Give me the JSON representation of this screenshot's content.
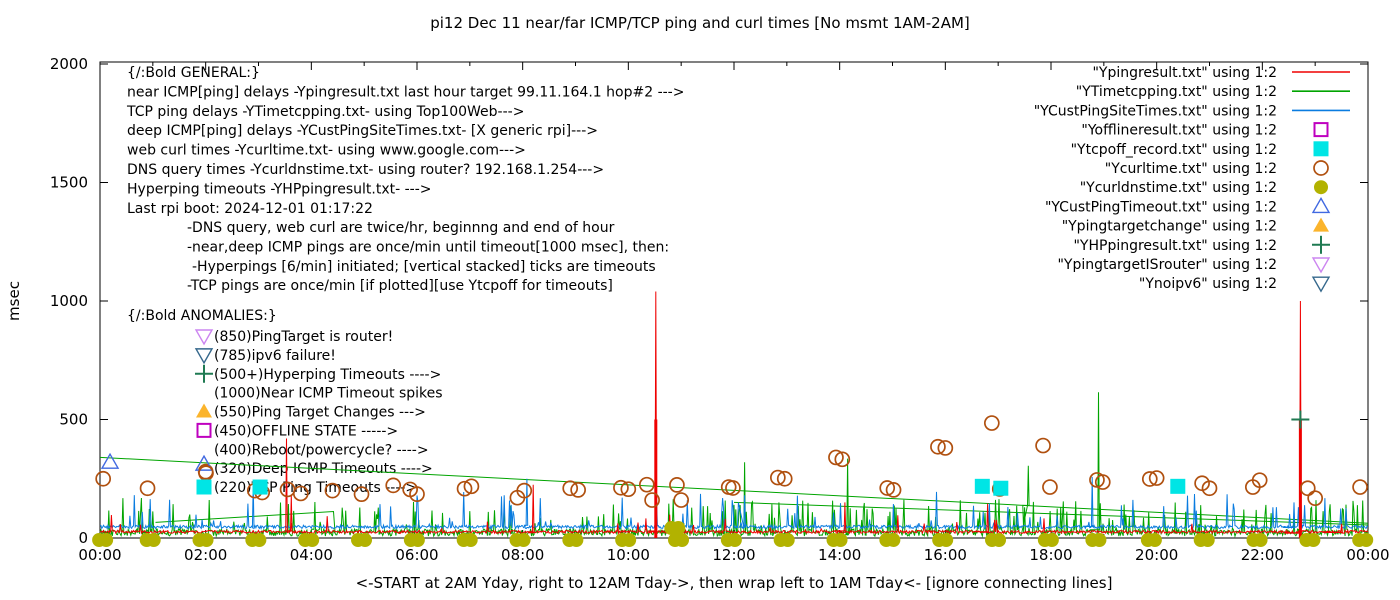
{
  "title": "pi12 Dec 11  near/far ICMP/TCP ping and curl times [No msmt 1AM-2AM]",
  "y_axis": {
    "label": "msec",
    "ticks": [
      "0",
      "500",
      "1000",
      "1500",
      "2000"
    ],
    "max": 2000
  },
  "x_axis": {
    "tick_labels": [
      "00:00",
      "02:00",
      "04:00",
      "06:00",
      "08:00",
      "10:00",
      "12:00",
      "14:00",
      "16:00",
      "18:00",
      "20:00",
      "22:00",
      "00:00"
    ],
    "caption": "<-START at 2AM Yday, right to 12AM Tday->, then wrap left to 1AM Tday<- [ignore connecting lines]"
  },
  "notes": {
    "general": [
      "{/:Bold GENERAL:}",
      "near ICMP[ping] delays -Ypingresult.txt last hour target 99.11.164.1 hop#2 --->",
      "TCP ping delays -YTimetcpping.txt- using Top100Web--->",
      "deep ICMP[ping] delays -YCustPingSiteTimes.txt- [X generic rpi]--->",
      "web curl times -Ycurltime.txt- using www.google.com--->",
      "DNS query times -Ycurldnstime.txt- using router? 192.168.1.254--->",
      "Hyperping timeouts -YHPpingresult.txt- --->",
      "Last rpi boot: 2024-12-01 01:17:22"
    ],
    "indented": [
      "-DNS query, web curl are twice/hr, beginnng and end of hour",
      "-near,deep ICMP pings are once/min until timeout[1000 msec], then:",
      "-Hyperpings [6/min] initiated; [vertical stacked] ticks are timeouts",
      "-TCP pings are once/min [if plotted][use Ytcpoff for timeouts]"
    ],
    "anomalies_header": "{/:Bold ANOMALIES:}",
    "anomalies": [
      {
        "marker": "tri-down-open",
        "color": "#cc85f0",
        "label": "(850)PingTarget is router!"
      },
      {
        "marker": "tri-down-open",
        "color": "#35688c",
        "label": "(785)ipv6 failure!"
      },
      {
        "marker": "plus",
        "color": "#1f7a52",
        "label": "(500+)Hyperping Timeouts ---->"
      },
      {
        "marker": "none",
        "color": "",
        "label": "(1000)Near ICMP Timeout spikes"
      },
      {
        "marker": "tri-up-filled",
        "color": "#fbb42c",
        "label": "(550)Ping Target Changes --->"
      },
      {
        "marker": "square-open",
        "color": "#bf00bf",
        "label": "(450)OFFLINE STATE ----->"
      },
      {
        "marker": "none",
        "color": "",
        "label": "(400)Reboot/powercycle? ---->"
      },
      {
        "marker": "tri-circle",
        "color": "#4169e1",
        "label": "(320)Deep ICMP Timeouts ---->"
      },
      {
        "marker": "square-filled",
        "color": "#00e5e5",
        "label": "(220)TCP Ping Timeouts ---->"
      }
    ]
  },
  "legend": [
    {
      "label": "\"Ypingresult.txt\" using 1:2",
      "sample": "line",
      "color": "#ef0000"
    },
    {
      "label": "\"YTimetcpping.txt\" using 1:2",
      "sample": "line",
      "color": "#00a400"
    },
    {
      "label": "\"YCustPingSiteTimes.txt\" using 1:2",
      "sample": "line",
      "color": "#0a7ce0"
    },
    {
      "label": "\"Yofflineresult.txt\" using 1:2",
      "sample": "square-open",
      "color": "#bf00bf"
    },
    {
      "label": "\"Ytcpoff_record.txt\" using 1:2",
      "sample": "square-filled",
      "color": "#00e5e5"
    },
    {
      "label": "\"Ycurltime.txt\" using 1:2",
      "sample": "circle-open",
      "color": "#b0500f"
    },
    {
      "label": "\"Ycurldnstime.txt\" using 1:2",
      "sample": "circle-filled",
      "color": "#b2b200"
    },
    {
      "label": "\"YCustPingTimeout.txt\" using 1:2",
      "sample": "tri-up-open",
      "color": "#4169e1"
    },
    {
      "label": "\"Ypingtargetchange\" using 1:2",
      "sample": "tri-up-filled",
      "color": "#fbb42c"
    },
    {
      "label": "\"YHPpingresult.txt\" using 1:2",
      "sample": "plus",
      "color": "#1f7a52"
    },
    {
      "label": "\"YpingtargetISrouter\" using 1:2",
      "sample": "tri-down-open",
      "color": "#cc85f0"
    },
    {
      "label": "\"Ynoipv6\" using 1:2",
      "sample": "tri-down-open",
      "color": "#35688c"
    }
  ],
  "chart_data": {
    "type": "line",
    "title": "pi12 Dec 11  near/far ICMP/TCP ping and curl times [No msmt 1AM-2AM]",
    "xlabel": "<-START at 2AM Yday, right to 12AM Tday->, then wrap left to 1AM Tday<- [ignore connecting lines]",
    "ylabel": "msec",
    "x_unit": "hours of day",
    "xlim": [
      0,
      24
    ],
    "ylim": [
      0,
      2000
    ],
    "grid": false,
    "legend_position": "top-right",
    "series": [
      {
        "name": "Ypingresult.txt",
        "type": "noisy-line",
        "color": "#ef0000",
        "baseline": 20,
        "noise": 12,
        "spike_prob": 0.02,
        "spike_max": 70,
        "spikes": [
          [
            3.53,
            420
          ],
          [
            3.62,
            180
          ],
          [
            8.2,
            225
          ],
          [
            10.52,
            1040
          ],
          [
            14.1,
            150
          ],
          [
            16.8,
            145
          ],
          [
            22.72,
            1000
          ],
          [
            23.5,
            60
          ]
        ],
        "thick_spikes": [
          [
            10.52,
            500
          ],
          [
            22.72,
            500
          ]
        ]
      },
      {
        "name": "YTimetcpping.txt",
        "type": "noisy-line",
        "color": "#00a400",
        "baseline": 8,
        "noise": 30,
        "spike_prob": 0.16,
        "spike_max": 140,
        "spikes": [
          [
            12.2,
            320
          ],
          [
            14.15,
            335
          ],
          [
            17.57,
            305
          ],
          [
            18.9,
            615
          ]
        ],
        "trend_lines": [
          [
            [
              0,
              340
            ],
            [
              24,
              62
            ]
          ],
          [
            [
              12,
              150
            ],
            [
              24,
              55
            ]
          ],
          [
            [
              1.05,
              66
            ],
            [
              4.42,
              112
            ],
            [
              4.45,
              20
            ]
          ]
        ]
      },
      {
        "name": "YCustPingSiteTimes.txt",
        "type": "noisy-line",
        "color": "#0a7ce0",
        "baseline": 40,
        "noise": 14,
        "spike_prob": 0.06,
        "spike_max": 150,
        "spikes": [
          [
            2.9,
            230
          ],
          [
            8.08,
            250
          ],
          [
            12.2,
            180
          ],
          [
            18.78,
            258
          ],
          [
            22.6,
            150
          ]
        ]
      },
      {
        "name": "Ycurltime.txt",
        "type": "points",
        "marker": "circle-open",
        "color": "#b0500f",
        "points": [
          [
            0.06,
            250
          ],
          [
            0.9,
            210
          ],
          [
            2.0,
            280
          ],
          [
            2.93,
            200
          ],
          [
            3.07,
            192
          ],
          [
            3.55,
            205
          ],
          [
            3.8,
            188
          ],
          [
            4.4,
            200
          ],
          [
            4.95,
            185
          ],
          [
            5.55,
            222
          ],
          [
            5.87,
            205
          ],
          [
            6.0,
            185
          ],
          [
            6.9,
            208
          ],
          [
            7.03,
            218
          ],
          [
            7.9,
            170
          ],
          [
            8.03,
            200
          ],
          [
            8.9,
            210
          ],
          [
            9.05,
            203
          ],
          [
            9.86,
            212
          ],
          [
            10.0,
            206
          ],
          [
            10.35,
            225
          ],
          [
            10.45,
            160
          ],
          [
            10.92,
            224
          ],
          [
            11.0,
            160
          ],
          [
            11.9,
            215
          ],
          [
            11.98,
            211
          ],
          [
            12.83,
            255
          ],
          [
            12.96,
            250
          ],
          [
            13.93,
            340
          ],
          [
            14.05,
            332
          ],
          [
            14.9,
            211
          ],
          [
            15.02,
            203
          ],
          [
            15.86,
            385
          ],
          [
            16.0,
            380
          ],
          [
            16.88,
            485
          ],
          [
            17.03,
            207
          ],
          [
            17.85,
            390
          ],
          [
            17.98,
            215
          ],
          [
            18.87,
            245
          ],
          [
            18.98,
            236
          ],
          [
            19.87,
            249
          ],
          [
            20.0,
            253
          ],
          [
            20.86,
            231
          ],
          [
            21.0,
            210
          ],
          [
            21.82,
            215
          ],
          [
            21.95,
            244
          ],
          [
            22.86,
            210
          ],
          [
            23.0,
            168
          ],
          [
            23.85,
            215
          ]
        ]
      },
      {
        "name": "Ycurldnstime.txt",
        "type": "points",
        "marker": "circle-filled-pair",
        "color": "#b2b200",
        "points": [
          [
            0.05,
            0
          ],
          [
            0.95,
            0
          ],
          [
            1.95,
            0
          ],
          [
            2.95,
            0
          ],
          [
            3.95,
            0
          ],
          [
            4.95,
            0
          ],
          [
            5.95,
            0
          ],
          [
            6.95,
            0
          ],
          [
            7.95,
            0
          ],
          [
            8.95,
            0
          ],
          [
            9.95,
            0
          ],
          [
            10.88,
            42
          ],
          [
            10.95,
            0
          ],
          [
            11.95,
            0
          ],
          [
            12.95,
            0
          ],
          [
            13.95,
            0
          ],
          [
            14.95,
            0
          ],
          [
            15.95,
            0
          ],
          [
            16.95,
            0
          ],
          [
            17.95,
            0
          ],
          [
            18.85,
            0
          ],
          [
            19.9,
            0
          ],
          [
            20.9,
            0
          ],
          [
            21.9,
            0
          ],
          [
            22.9,
            0
          ],
          [
            23.9,
            0
          ]
        ]
      },
      {
        "name": "Ytcpoff_record.txt",
        "type": "points",
        "marker": "square-filled",
        "color": "#00e5e5",
        "points": [
          [
            3.03,
            215
          ],
          [
            16.7,
            218
          ],
          [
            17.05,
            210
          ],
          [
            20.4,
            218
          ]
        ]
      },
      {
        "name": "YCustPingTimeout.txt",
        "type": "points",
        "marker": "tri-up-open",
        "color": "#4169e1",
        "points": [
          [
            0.19,
            320
          ]
        ]
      },
      {
        "name": "YHPpingresult.txt",
        "type": "points",
        "marker": "plus",
        "color": "#1f7a52",
        "points": [
          [
            22.72,
            500
          ]
        ]
      }
    ]
  }
}
